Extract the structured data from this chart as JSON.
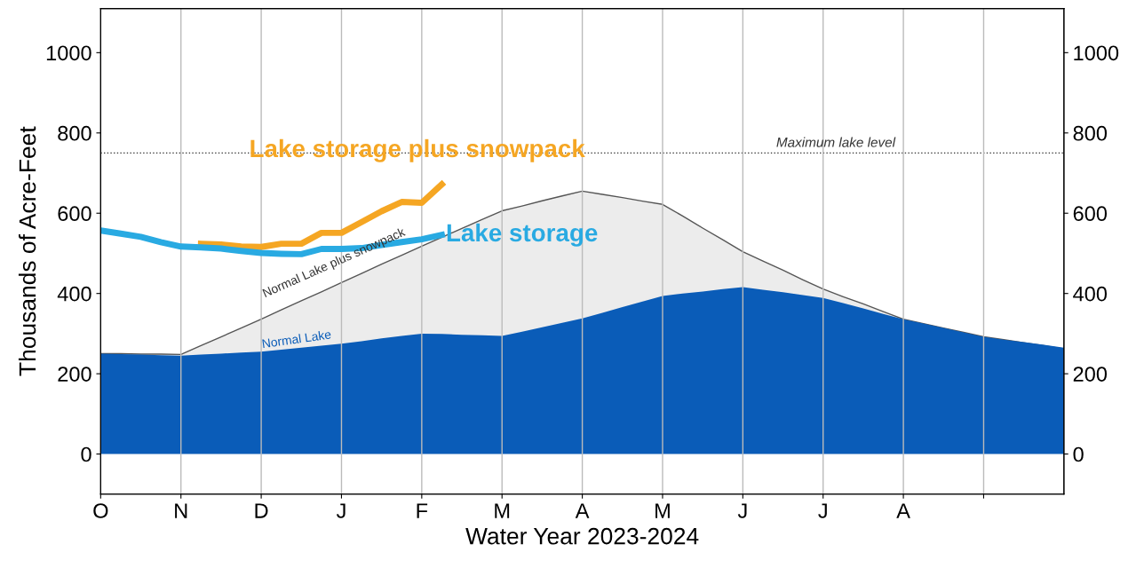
{
  "chart_data": {
    "type": "area",
    "xlabel": "Water Year 2023-2024",
    "ylabel": "Thousands of Acre-Feet",
    "categories": [
      "O",
      null,
      null,
      null,
      "N",
      null,
      null,
      null,
      "D",
      null,
      null,
      null,
      "J",
      null,
      null,
      null,
      "F",
      null,
      null,
      null,
      "M",
      null,
      null,
      null,
      "A",
      null,
      null,
      null,
      "M",
      null,
      null,
      null,
      "J",
      null,
      null,
      null,
      "J",
      null,
      null,
      null,
      "A",
      null,
      null,
      null,
      null,
      null,
      null,
      null,
      null
    ],
    "ylim": [
      -100,
      1110
    ],
    "yticks": [
      0,
      200,
      400,
      600,
      800,
      1000
    ],
    "y2lim": [
      -100,
      1110
    ],
    "y2ticks": [
      0,
      200,
      400,
      600,
      800,
      1000
    ],
    "grid": "x",
    "legend": false,
    "series": [
      {
        "name": "Normal Lake plus snowpack",
        "color": "#ececec",
        "values": [
          250,
          250,
          249,
          249,
          248,
          270,
          292,
          314,
          336,
          359,
          382,
          404,
          427,
          450,
          473,
          495,
          518,
          540,
          562,
          584,
          606,
          618,
          631,
          643,
          655,
          647,
          639,
          630,
          622,
          593,
          563,
          534,
          504,
          481,
          458,
          434,
          411,
          392,
          374,
          355,
          336,
          325,
          314,
          303,
          292,
          285,
          277,
          270,
          262
        ]
      },
      {
        "name": "Normal Lake",
        "color": "#0a5cb8",
        "values": [
          250,
          249,
          248,
          246,
          245,
          248,
          250,
          253,
          255,
          260,
          265,
          270,
          275,
          281,
          288,
          294,
          300,
          299,
          297,
          296,
          294,
          305,
          316,
          327,
          338,
          352,
          366,
          380,
          394,
          400,
          405,
          411,
          416,
          409,
          403,
          396,
          389,
          376,
          363,
          349,
          336,
          325,
          314,
          303,
          292,
          285,
          279,
          272,
          265
        ]
      },
      {
        "name": "Lake storage plus snowpack",
        "type": "line",
        "color": "#f5a623",
        "values": [
          null,
          null,
          null,
          null,
          null,
          524,
          522,
          517,
          516,
          524,
          524,
          551,
          551,
          578,
          605,
          628,
          626,
          672,
          null,
          null,
          null,
          null,
          null,
          null,
          null,
          null,
          null,
          null,
          null,
          null,
          null,
          null,
          null,
          null,
          null,
          null,
          null,
          null,
          null,
          null,
          null,
          null,
          null,
          null,
          null,
          null,
          null,
          null,
          null
        ]
      },
      {
        "name": "Lake storage",
        "type": "line",
        "color": "#29aae2",
        "values": [
          557,
          549,
          541,
          528,
          517,
          515,
          512,
          506,
          501,
          499,
          498,
          511,
          511,
          513,
          521,
          528,
          535,
          546,
          null,
          null,
          null,
          null,
          null,
          null,
          null,
          null,
          null,
          null,
          null,
          null,
          null,
          null,
          null,
          null,
          null,
          null,
          null,
          null,
          null,
          null,
          null,
          null,
          null,
          null,
          null,
          null,
          null,
          null,
          null
        ]
      }
    ],
    "ref_lines": [
      {
        "axis": "y",
        "value": 750,
        "label": "Maximum lake level",
        "color": "#333333",
        "line_style": "dotted"
      }
    ]
  }
}
